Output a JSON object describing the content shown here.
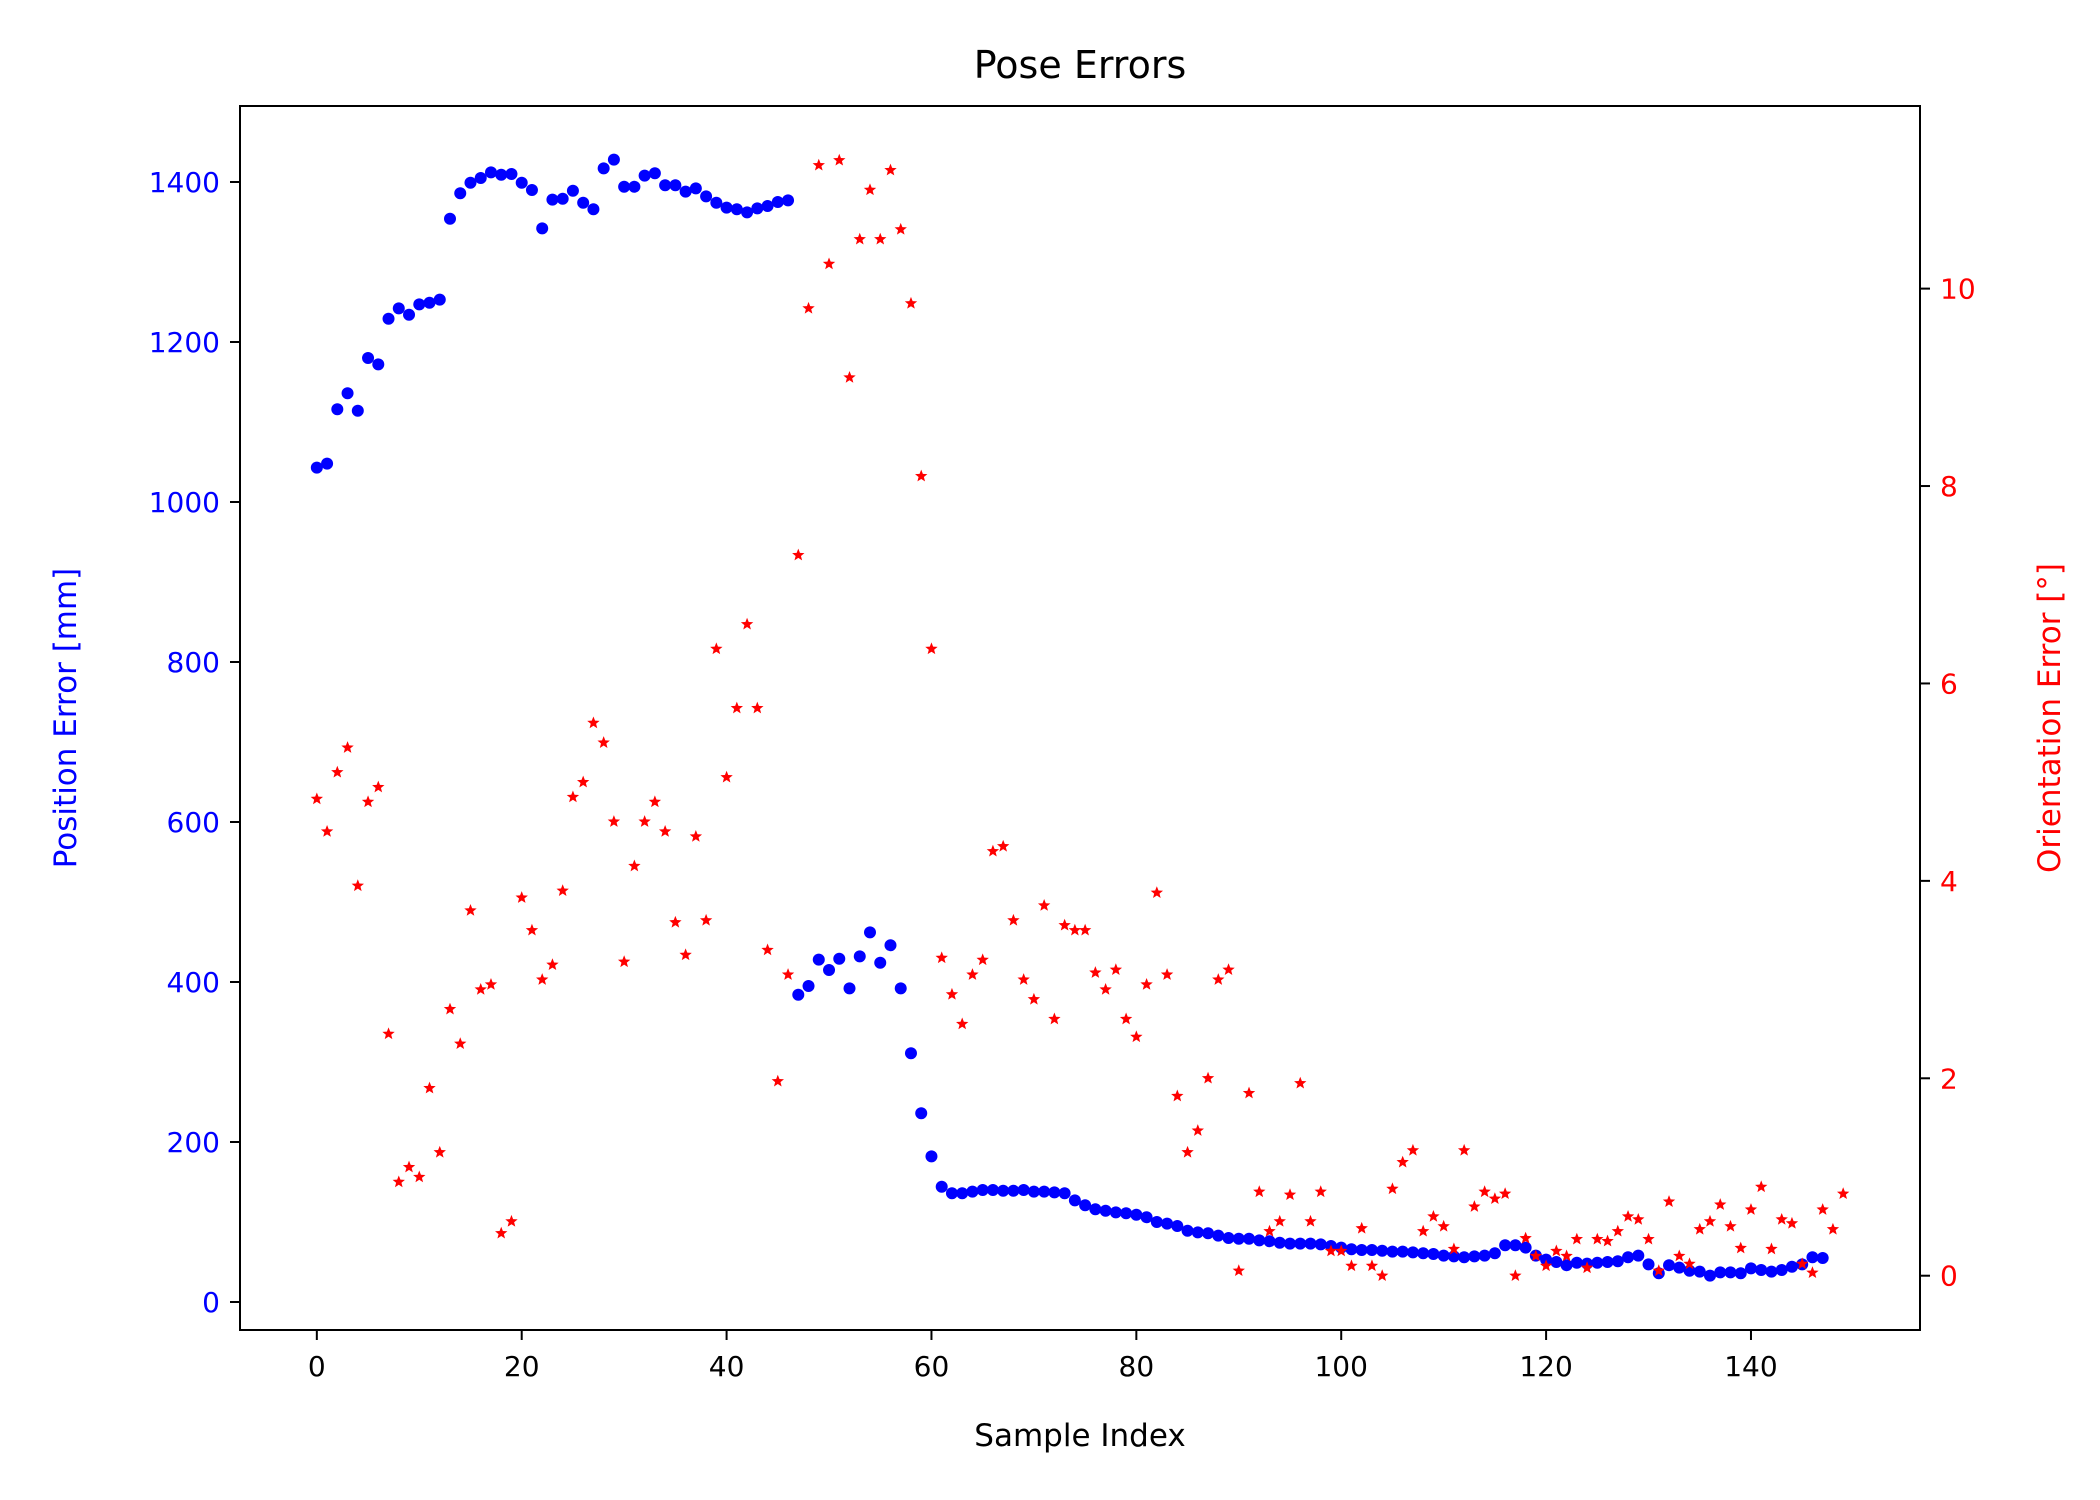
{
  "chart_data": {
    "type": "scatter",
    "title": "Pose Errors",
    "xlabel": "Sample Index",
    "ylabel_left": "Position Error [mm]",
    "ylabel_right": "Orientation Error [°]",
    "xlim": [
      -7.5,
      156.5
    ],
    "ylim_left": [
      -35,
      1495
    ],
    "ylim_right": [
      -0.55,
      11.85
    ],
    "x_ticks": [
      0,
      20,
      40,
      60,
      80,
      100,
      120,
      140
    ],
    "y_left_ticks": [
      0,
      200,
      400,
      600,
      800,
      1000,
      1200,
      1400
    ],
    "y_right_ticks": [
      0,
      2,
      4,
      6,
      8,
      10
    ],
    "grid": false,
    "colors": {
      "left_axis": "#0000ff",
      "right_axis": "#ff0000",
      "frame": "#000000"
    },
    "series": [
      {
        "axis": "left",
        "marker": "circle",
        "color": "#0000ff",
        "x_start": 0,
        "values": [
          1043,
          1048,
          1116,
          1136,
          1114,
          1180,
          1172,
          1229,
          1242,
          1234,
          1247,
          1249,
          1253,
          1354,
          1386,
          1399,
          1405,
          1412,
          1409,
          1410,
          1399,
          1390,
          1342,
          1378,
          1379,
          1389,
          1374,
          1366,
          1417,
          1428,
          1394,
          1394,
          1408,
          1411,
          1396,
          1396,
          1388,
          1392,
          1382,
          1374,
          1368,
          1366,
          1362,
          1367,
          1370,
          1375,
          1377,
          384,
          395,
          428,
          415,
          429,
          392,
          432,
          462,
          424,
          446,
          392,
          311,
          236,
          182,
          144,
          136,
          136,
          138,
          140,
          140,
          139,
          139,
          140,
          138,
          138,
          137,
          136,
          127,
          121,
          116,
          114,
          112,
          111,
          109,
          106,
          100,
          98,
          95,
          89,
          87,
          86,
          83,
          80,
          79,
          79,
          77,
          76,
          74,
          73,
          73,
          73,
          72,
          70,
          68,
          66,
          65,
          65,
          64,
          63,
          63,
          62,
          61,
          60,
          58,
          57,
          56,
          57,
          58,
          61,
          71,
          71,
          68,
          58,
          53,
          50,
          46,
          49,
          48,
          49,
          50,
          51,
          56,
          58,
          47,
          36,
          46,
          43,
          39,
          38,
          33,
          37,
          37,
          36,
          42,
          40,
          38,
          40,
          44,
          47,
          56,
          55
        ]
      },
      {
        "axis": "right",
        "marker": "star",
        "color": "#ff0000",
        "x_start": 0,
        "values": [
          4.83,
          4.5,
          5.1,
          5.35,
          3.95,
          4.8,
          4.95,
          2.45,
          0.95,
          1.1,
          1.0,
          1.9,
          1.25,
          2.7,
          2.35,
          3.7,
          2.9,
          2.95,
          0.43,
          0.55,
          3.83,
          3.5,
          3.0,
          3.15,
          3.9,
          4.85,
          5.0,
          5.6,
          5.4,
          4.6,
          3.18,
          4.15,
          4.6,
          4.8,
          4.5,
          3.58,
          3.25,
          4.45,
          3.6,
          6.35,
          5.05,
          5.75,
          6.6,
          5.75,
          3.3,
          1.97,
          3.05,
          7.3,
          9.8,
          11.25,
          10.25,
          11.3,
          9.1,
          10.5,
          11.0,
          10.5,
          11.2,
          10.6,
          9.85,
          8.1,
          6.35,
          3.22,
          2.85,
          2.55,
          3.05,
          3.2,
          4.3,
          4.35,
          3.6,
          3.0,
          2.8,
          3.75,
          2.6,
          3.55,
          3.5,
          3.5,
          3.07,
          2.9,
          3.1,
          2.6,
          2.42,
          2.95,
          3.88,
          3.05,
          1.82,
          1.25,
          1.47,
          2.0,
          3.0,
          3.1,
          0.05,
          1.85,
          0.85,
          0.45,
          0.55,
          0.82,
          1.95,
          0.55,
          0.85,
          0.25,
          0.25,
          0.1,
          0.48,
          0.1,
          0.0,
          0.88,
          1.15,
          1.27,
          0.45,
          0.6,
          0.5,
          0.27,
          1.27,
          0.7,
          0.85,
          0.78,
          0.83,
          0.0,
          0.38,
          0.2,
          0.1,
          0.25,
          0.2,
          0.37,
          0.08,
          0.37,
          0.35,
          0.45,
          0.6,
          0.57,
          0.37,
          0.05,
          0.75,
          0.2,
          0.12,
          0.47,
          0.55,
          0.72,
          0.5,
          0.28,
          0.67,
          0.9,
          0.27,
          0.57,
          0.53,
          0.12,
          0.03,
          0.67,
          0.47,
          0.83
        ]
      }
    ]
  }
}
